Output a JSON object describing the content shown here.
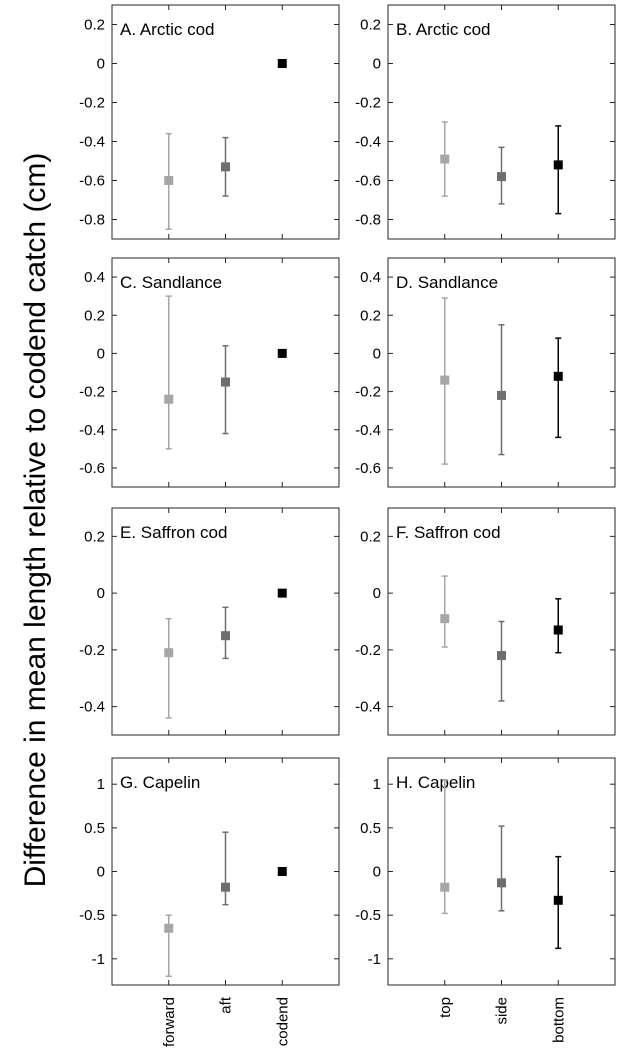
{
  "ylabel": "Difference in mean length relative to codend catch (cm)",
  "chart_data": [
    {
      "type": "scatter",
      "title": "A.  Arctic cod",
      "categories": [
        "forward",
        "aft",
        "codend"
      ],
      "ylim": [
        -0.9,
        0.3
      ],
      "yticks": [
        0.2,
        0,
        -0.2,
        -0.4,
        -0.6,
        -0.8
      ],
      "points": [
        {
          "category": "forward",
          "mean": -0.6,
          "lower": -0.85,
          "upper": -0.36,
          "color": "#a6a6a6",
          "error_bar": true
        },
        {
          "category": "aft",
          "mean": -0.53,
          "lower": -0.68,
          "upper": -0.38,
          "color": "#6e6e6e",
          "error_bar": true
        },
        {
          "category": "codend",
          "mean": 0,
          "color": "#000000",
          "error_bar": false
        }
      ]
    },
    {
      "type": "scatter",
      "title": "B.  Arctic cod",
      "categories": [
        "top",
        "side",
        "bottom"
      ],
      "ylim": [
        -0.9,
        0.3
      ],
      "yticks": [
        0.2,
        0,
        -0.2,
        -0.4,
        -0.6,
        -0.8
      ],
      "points": [
        {
          "category": "top",
          "mean": -0.49,
          "lower": -0.68,
          "upper": -0.3,
          "color": "#a6a6a6",
          "error_bar": true
        },
        {
          "category": "side",
          "mean": -0.58,
          "lower": -0.72,
          "upper": -0.43,
          "color": "#6e6e6e",
          "error_bar": true
        },
        {
          "category": "bottom",
          "mean": -0.52,
          "lower": -0.77,
          "upper": -0.32,
          "color": "#000000",
          "error_bar": true
        }
      ]
    },
    {
      "type": "scatter",
      "title": "C. Sandlance",
      "categories": [
        "forward",
        "aft",
        "codend"
      ],
      "ylim": [
        -0.7,
        0.5
      ],
      "yticks": [
        0.4,
        0.2,
        0,
        -0.2,
        -0.4,
        -0.6
      ],
      "points": [
        {
          "category": "forward",
          "mean": -0.24,
          "lower": -0.5,
          "upper": 0.3,
          "color": "#a6a6a6",
          "error_bar": true
        },
        {
          "category": "aft",
          "mean": -0.15,
          "lower": -0.42,
          "upper": 0.04,
          "color": "#6e6e6e",
          "error_bar": true
        },
        {
          "category": "codend",
          "mean": 0,
          "color": "#000000",
          "error_bar": false
        }
      ]
    },
    {
      "type": "scatter",
      "title": "D. Sandlance",
      "categories": [
        "top",
        "side",
        "bottom"
      ],
      "ylim": [
        -0.7,
        0.5
      ],
      "yticks": [
        0.4,
        0.2,
        0,
        -0.2,
        -0.4,
        -0.6
      ],
      "points": [
        {
          "category": "top",
          "mean": -0.14,
          "lower": -0.58,
          "upper": 0.29,
          "color": "#a6a6a6",
          "error_bar": true
        },
        {
          "category": "side",
          "mean": -0.22,
          "lower": -0.53,
          "upper": 0.15,
          "color": "#6e6e6e",
          "error_bar": true
        },
        {
          "category": "bottom",
          "mean": -0.12,
          "lower": -0.44,
          "upper": 0.08,
          "color": "#000000",
          "error_bar": true
        }
      ]
    },
    {
      "type": "scatter",
      "title": "E.  Saffron cod",
      "categories": [
        "forward",
        "aft",
        "codend"
      ],
      "ylim": [
        -0.5,
        0.3
      ],
      "yticks": [
        0.2,
        0,
        -0.2,
        -0.4
      ],
      "points": [
        {
          "category": "forward",
          "mean": -0.21,
          "lower": -0.44,
          "upper": -0.09,
          "color": "#a6a6a6",
          "error_bar": true
        },
        {
          "category": "aft",
          "mean": -0.15,
          "lower": -0.23,
          "upper": -0.05,
          "color": "#6e6e6e",
          "error_bar": true
        },
        {
          "category": "codend",
          "mean": 0,
          "color": "#000000",
          "error_bar": false
        }
      ]
    },
    {
      "type": "scatter",
      "title": "F.  Saffron cod",
      "categories": [
        "top",
        "side",
        "bottom"
      ],
      "ylim": [
        -0.5,
        0.3
      ],
      "yticks": [
        0.2,
        0,
        -0.2,
        -0.4
      ],
      "points": [
        {
          "category": "top",
          "mean": -0.09,
          "lower": -0.19,
          "upper": 0.06,
          "color": "#a6a6a6",
          "error_bar": true
        },
        {
          "category": "side",
          "mean": -0.22,
          "lower": -0.38,
          "upper": -0.1,
          "color": "#6e6e6e",
          "error_bar": true
        },
        {
          "category": "bottom",
          "mean": -0.13,
          "lower": -0.21,
          "upper": -0.02,
          "color": "#000000",
          "error_bar": true
        }
      ]
    },
    {
      "type": "scatter",
      "title": "G.  Capelin",
      "categories": [
        "forward",
        "aft",
        "codend"
      ],
      "ylim": [
        -1.3,
        1.3
      ],
      "yticks": [
        1,
        0.5,
        0,
        -0.5,
        -1
      ],
      "points": [
        {
          "category": "forward",
          "mean": -0.65,
          "lower": -1.2,
          "upper": -0.5,
          "color": "#a6a6a6",
          "error_bar": true
        },
        {
          "category": "aft",
          "mean": -0.18,
          "lower": -0.38,
          "upper": 0.45,
          "color": "#6e6e6e",
          "error_bar": true
        },
        {
          "category": "codend",
          "mean": 0,
          "color": "#000000",
          "error_bar": false
        }
      ]
    },
    {
      "type": "scatter",
      "title": "H. Capelin",
      "categories": [
        "top",
        "side",
        "bottom"
      ],
      "ylim": [
        -1.3,
        1.3
      ],
      "yticks": [
        1,
        0.5,
        0,
        -0.5,
        -1
      ],
      "points": [
        {
          "category": "top",
          "mean": -0.18,
          "lower": -0.48,
          "upper": 1.05,
          "color": "#a6a6a6",
          "error_bar": true
        },
        {
          "category": "side",
          "mean": -0.13,
          "lower": -0.45,
          "upper": 0.52,
          "color": "#6e6e6e",
          "error_bar": true
        },
        {
          "category": "bottom",
          "mean": -0.33,
          "lower": -0.88,
          "upper": 0.17,
          "color": "#000000",
          "error_bar": true
        }
      ]
    }
  ]
}
